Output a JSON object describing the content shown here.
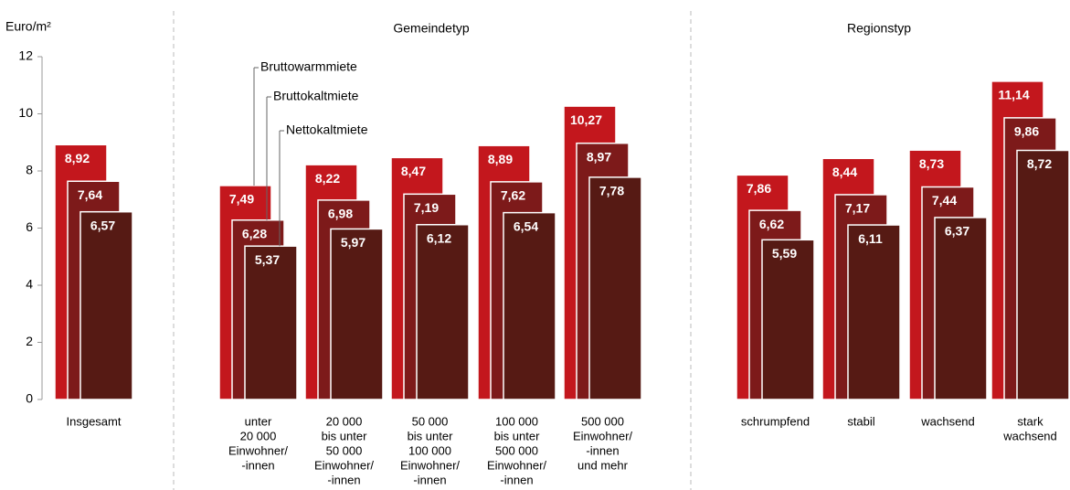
{
  "chart_data": {
    "type": "bar",
    "y_label": "Euro/m²",
    "group_titles": [
      "Gemeindetyp",
      "Regionstyp"
    ],
    "categories": [
      [
        "Insgesamt"
      ],
      [
        "unter",
        "20 000",
        "Einwohner/",
        "-innen"
      ],
      [
        "20 000",
        "bis unter",
        "50 000",
        "Einwohner/",
        "-innen"
      ],
      [
        "50 000",
        "bis unter",
        "100 000",
        "Einwohner/",
        "-innen"
      ],
      [
        "100 000",
        "bis unter",
        "500 000",
        "Einwohner/",
        "-innen"
      ],
      [
        "500 000",
        "Einwohner/",
        "-innen",
        "und mehr"
      ],
      [
        "schrumpfend"
      ],
      [
        "stabil"
      ],
      [
        "wachsend"
      ],
      [
        "stark",
        "wachsend"
      ]
    ],
    "series": [
      {
        "name": "Bruttowarmmiete",
        "color": "#c3171d",
        "values": [
          8.92,
          7.49,
          8.22,
          8.47,
          8.89,
          10.27,
          7.86,
          8.44,
          8.73,
          11.14
        ],
        "value_labels": [
          "8,92",
          "7,49",
          "8,22",
          "8,47",
          "8,89",
          "10,27",
          "7,86",
          "8,44",
          "8,73",
          "11,14"
        ]
      },
      {
        "name": "Bruttokaltmiete",
        "color": "#7d1a1a",
        "values": [
          7.64,
          6.28,
          6.98,
          7.19,
          7.62,
          8.97,
          6.62,
          7.17,
          7.44,
          9.86
        ],
        "value_labels": [
          "7,64",
          "6,28",
          "6,98",
          "7,19",
          "7,62",
          "8,97",
          "6,62",
          "7,17",
          "7,44",
          "9,86"
        ]
      },
      {
        "name": "Nettokaltmiete",
        "color": "#561a14",
        "values": [
          6.57,
          5.37,
          5.97,
          6.12,
          6.54,
          7.78,
          5.59,
          6.11,
          6.37,
          8.72
        ],
        "value_labels": [
          "6,57",
          "5,37",
          "5,97",
          "6,12",
          "6,54",
          "7,78",
          "5,59",
          "6,11",
          "6,37",
          "8,72"
        ]
      }
    ],
    "ylim": [
      0,
      12
    ],
    "yticks": [
      0,
      2,
      4,
      6,
      8,
      10,
      12
    ],
    "grid": false
  }
}
